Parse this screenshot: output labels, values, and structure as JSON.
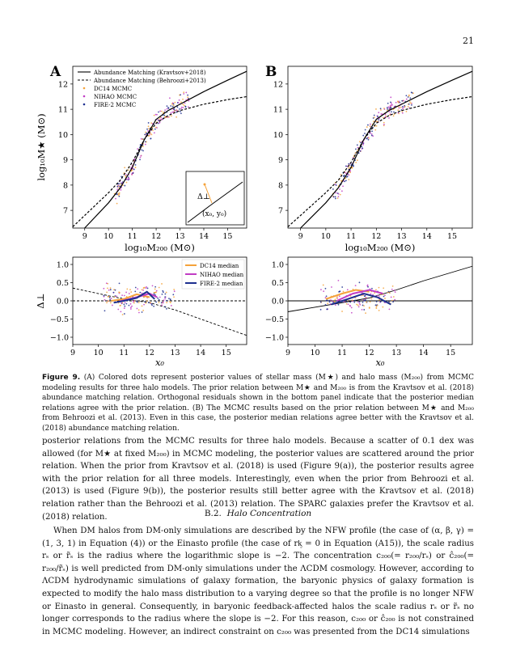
{
  "page_number": "21",
  "panels": {
    "A": "A",
    "B": "B"
  },
  "legend_top": [
    "Abundance Matching (Kravtsov+2018)",
    "Abundance Matching (Behroozi+2013)",
    "DC14 MCMC",
    "NIHAO MCMC",
    "FIRE-2 MCMC"
  ],
  "legend_bottom": [
    "DC14 median",
    "NIHAO median",
    "FIRE-2 median"
  ],
  "axis": {
    "top_x": "log₁₀M₂₀₀ (M⊙)",
    "top_y": "log₁₀M★ (M⊙)",
    "bottom_x": "x₀",
    "bottom_y": "Δ⊥",
    "top_xticks": [
      "9",
      "10",
      "11",
      "12",
      "13",
      "14",
      "15"
    ],
    "top_yticks": [
      "7",
      "8",
      "9",
      "10",
      "11",
      "12"
    ],
    "bottom_xticks": [
      "9",
      "10",
      "11",
      "12",
      "13",
      "14",
      "15"
    ],
    "bottom_yticks": [
      "1.0",
      "0.5",
      "0.0",
      "−0.5",
      "−1.0"
    ]
  },
  "inset": {
    "delta": "Δ⊥",
    "point": "(x₀, y₀)"
  },
  "colors": {
    "dc14": "#f5a23a",
    "nihao": "#c13cc4",
    "fire2": "#1d2f8f",
    "link": "#3a3aa8"
  },
  "chart_data": [
    {
      "type": "line",
      "panel": "A",
      "xlabel": "log10 M200 (M⊙)",
      "ylabel": "log10 M★ (M⊙)",
      "xlim": [
        8.5,
        15.8
      ],
      "ylim": [
        6.3,
        12.7
      ],
      "series": [
        {
          "name": "Abundance Matching (Kravtsov+2018)",
          "style": "solid",
          "x": [
            9.0,
            10.0,
            10.5,
            11.0,
            11.5,
            12.0,
            12.5,
            13.0,
            14.0,
            15.0,
            15.8
          ],
          "y": [
            6.3,
            7.3,
            7.9,
            8.7,
            9.8,
            10.6,
            10.95,
            11.2,
            11.7,
            12.15,
            12.5
          ]
        },
        {
          "name": "Abundance Matching (Behroozi+2013)",
          "style": "dashed",
          "x": [
            8.5,
            9.0,
            10.0,
            10.5,
            11.0,
            11.5,
            12.0,
            12.5,
            13.0,
            14.0,
            15.0,
            15.8
          ],
          "y": [
            6.35,
            6.8,
            7.7,
            8.2,
            8.9,
            9.8,
            10.45,
            10.75,
            10.95,
            11.2,
            11.38,
            11.5
          ]
        }
      ]
    },
    {
      "type": "line",
      "panel": "B",
      "xlabel": "log10 M200 (M⊙)",
      "ylabel": "log10 M★ (M⊙)",
      "xlim": [
        8.5,
        15.8
      ],
      "ylim": [
        6.3,
        12.7
      ],
      "series": [
        {
          "name": "Abundance Matching (Kravtsov+2018)",
          "style": "solid",
          "x": [
            9.0,
            10.0,
            10.5,
            11.0,
            11.5,
            12.0,
            12.5,
            13.0,
            14.0,
            15.0,
            15.8
          ],
          "y": [
            6.3,
            7.3,
            7.9,
            8.7,
            9.8,
            10.6,
            10.95,
            11.2,
            11.7,
            12.15,
            12.5
          ]
        },
        {
          "name": "Abundance Matching (Behroozi+2013)",
          "style": "dashed",
          "x": [
            8.5,
            9.0,
            10.0,
            10.5,
            11.0,
            11.5,
            12.0,
            12.5,
            13.0,
            14.0,
            15.0,
            15.8
          ],
          "y": [
            6.35,
            6.8,
            7.7,
            8.2,
            8.9,
            9.8,
            10.45,
            10.75,
            10.95,
            11.2,
            11.38,
            11.5
          ]
        }
      ]
    },
    {
      "type": "line",
      "panel": "A-residual",
      "xlabel": "x0",
      "ylabel": "Δ⊥",
      "xlim": [
        9,
        15.8
      ],
      "ylim": [
        -1.2,
        1.2
      ],
      "series": [
        {
          "name": "DC14 median",
          "x": [
            10.5,
            11.0,
            11.5,
            12.0
          ],
          "y": [
            0.0,
            0.05,
            0.18,
            0.1
          ]
        },
        {
          "name": "NIHAO median",
          "x": [
            10.8,
            11.2,
            11.6,
            12.0,
            12.3
          ],
          "y": [
            -0.02,
            0.05,
            0.12,
            0.2,
            0.1
          ]
        },
        {
          "name": "FIRE-2 median",
          "x": [
            10.6,
            11.0,
            11.5,
            11.9,
            12.2
          ],
          "y": [
            -0.05,
            0.0,
            0.08,
            0.25,
            0.05
          ]
        }
      ]
    },
    {
      "type": "line",
      "panel": "B-residual",
      "xlabel": "x0",
      "ylabel": "Δ⊥",
      "xlim": [
        9,
        15.8
      ],
      "ylim": [
        -1.2,
        1.2
      ],
      "series": [
        {
          "name": "DC14 median",
          "x": [
            10.4,
            11.0,
            11.5,
            12.0
          ],
          "y": [
            0.05,
            0.2,
            0.3,
            0.25
          ]
        },
        {
          "name": "NIHAO median",
          "x": [
            10.8,
            11.4,
            12.0,
            12.5
          ],
          "y": [
            0.0,
            0.2,
            0.3,
            0.2
          ]
        },
        {
          "name": "FIRE-2 median",
          "x": [
            10.6,
            11.2,
            11.8,
            12.3,
            12.8
          ],
          "y": [
            -0.1,
            0.05,
            0.2,
            0.1,
            -0.1
          ]
        }
      ]
    }
  ],
  "caption": {
    "label": "Figure 9.",
    "text": "(A) Colored dots represent posterior values of stellar mass (M★) and halo mass (M₂₀₀) from MCMC modeling results for three halo models. The prior relation between M★ and M₂₀₀ is from the Kravtsov et al. (2018) abundance matching relation. Orthogonal residuals shown in the bottom panel indicate that the posterior median relations agree with the prior relation. (B) The MCMC results based on the prior relation between M★ and M₂₀₀ from Behroozi et al. (2013). Even in this case, the posterior median relations agree better with the Kravtsov et al. (2018) abundance matching relation."
  },
  "body1": "posterior relations from the MCMC results for three halo models. Because a scatter of 0.1 dex was allowed (for M★ at fixed M₂₀₀) in MCMC modeling, the posterior values are scattered around the prior relation. When the prior from Kravtsov et al. (2018) is used (Figure 9(a)), the posterior results agree with the prior relation for all three models. Interestingly, even when the prior from Behroozi et al. (2013) is used (Figure 9(b)), the posterior results still better agree with the Kravtsov et al. (2018) relation rather than the Behroozi et al. (2013) relation. The SPARC galaxies prefer the Kravtsov et al. (2018) relation.",
  "section": {
    "number": "B.2.",
    "title": "Halo Concentration"
  },
  "body2": "When DM halos from DM-only simulations are described by the NFW profile (the case of (α, β, γ) = (1, 3, 1) in Equation (4)) or the Einasto profile (the case of rᶄ = 0 in Equation (A15)), the scale radius rₛ or r̃ₛ is the radius where the logarithmic slope is −2. The concentration c₂₀₀(= r₂₀₀/rₛ) or ĉ₂₀₀(= r₂₀₀/r̃ₛ) is well predicted from DM-only simulations under the ΛCDM cosmology. However, according to ΛCDM hydrodynamic simulations of galaxy formation, the baryonic physics of galaxy formation is expected to modify the halo mass distribution to a varying degree so that the profile is no longer NFW or Einasto in general. Consequently, in baryonic feedback-affected halos the scale radius rₛ or r̃ₛ no longer corresponds to the radius where the slope is −2. For this reason, c₂₀₀ or ĉ₂₀₀ is not constrained in MCMC modeling. However, an indirect constraint on c₂₀₀ was presented from the DC14 simulations"
}
